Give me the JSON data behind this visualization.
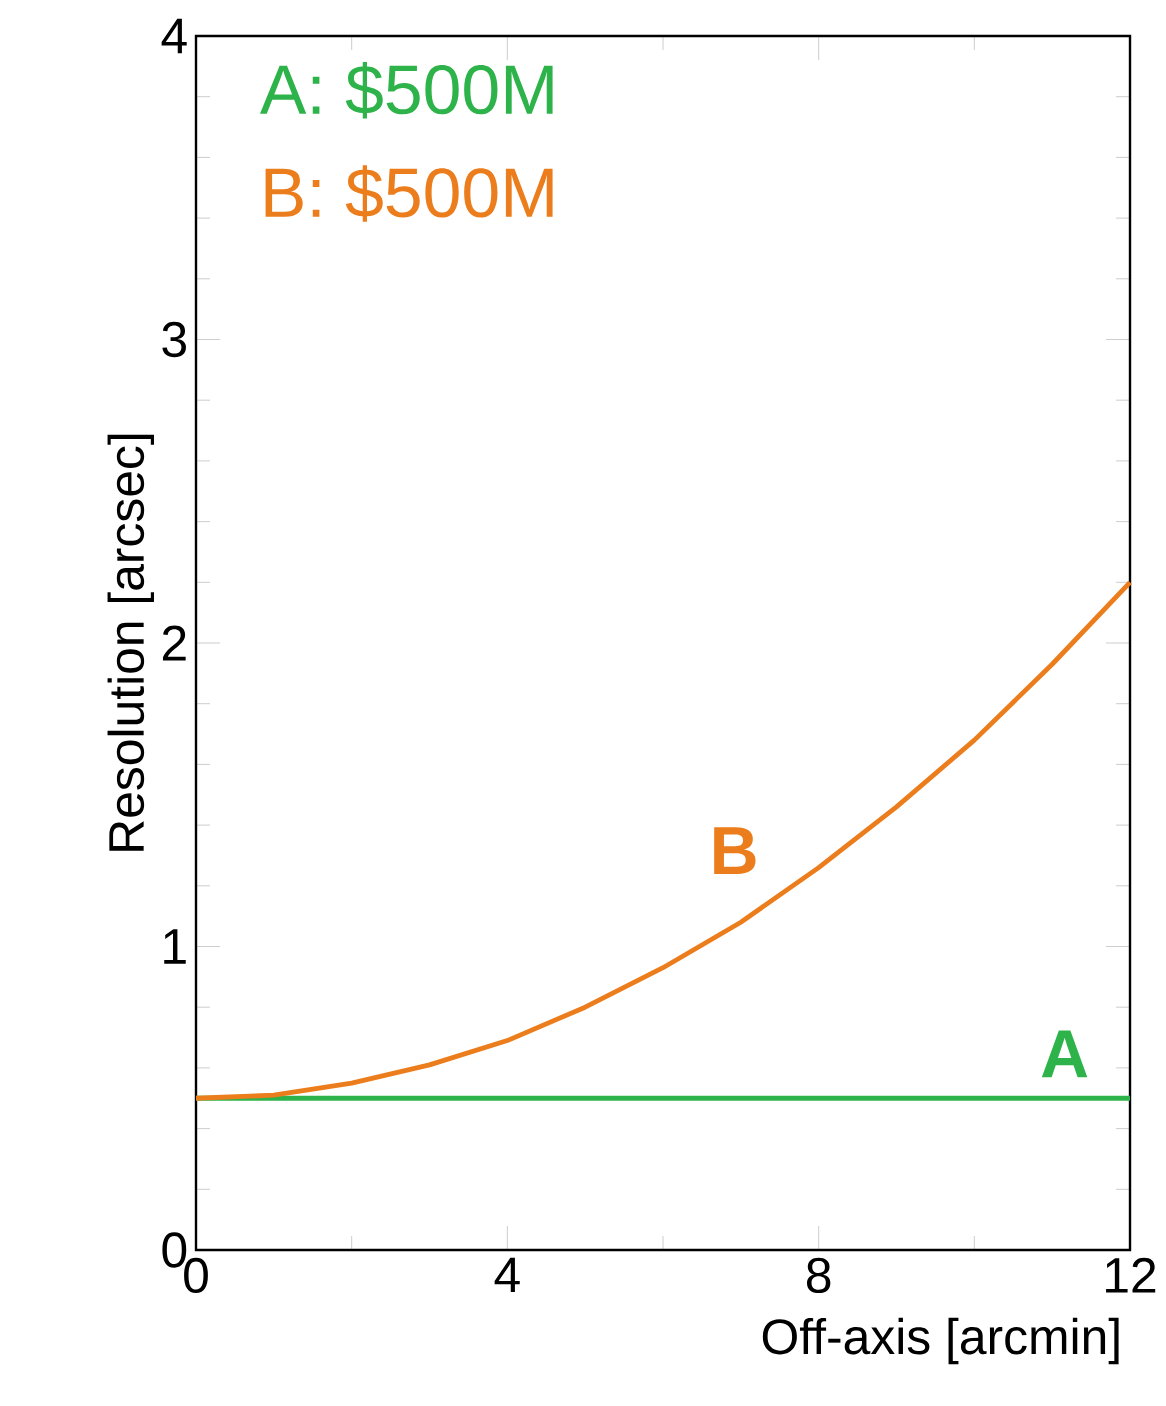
{
  "chart_data": {
    "type": "line",
    "xlabel": "Off-axis [arcmin]",
    "ylabel": "Resolution [arcsec]",
    "x": [
      0,
      1,
      2,
      3,
      4,
      5,
      6,
      7,
      8,
      9,
      10,
      11,
      12
    ],
    "series": [
      {
        "name": "A",
        "color": "#2db34a",
        "values": [
          0.5,
          0.5,
          0.5,
          0.5,
          0.5,
          0.5,
          0.5,
          0.5,
          0.5,
          0.5,
          0.5,
          0.5,
          0.5
        ]
      },
      {
        "name": "B",
        "color": "#ec7d1c",
        "values": [
          0.5,
          0.51,
          0.55,
          0.61,
          0.69,
          0.8,
          0.93,
          1.08,
          1.26,
          1.46,
          1.68,
          1.93,
          2.2
        ]
      }
    ],
    "annotations": [
      "A:  $500M",
      "B:  $500M"
    ],
    "xlim": [
      0,
      12
    ],
    "ylim": [
      0,
      4
    ],
    "xticks": [
      0,
      4,
      8,
      12
    ],
    "yticks": [
      0,
      1,
      2,
      3,
      4
    ],
    "grid": false,
    "marker": "none",
    "line_style": "solid"
  }
}
